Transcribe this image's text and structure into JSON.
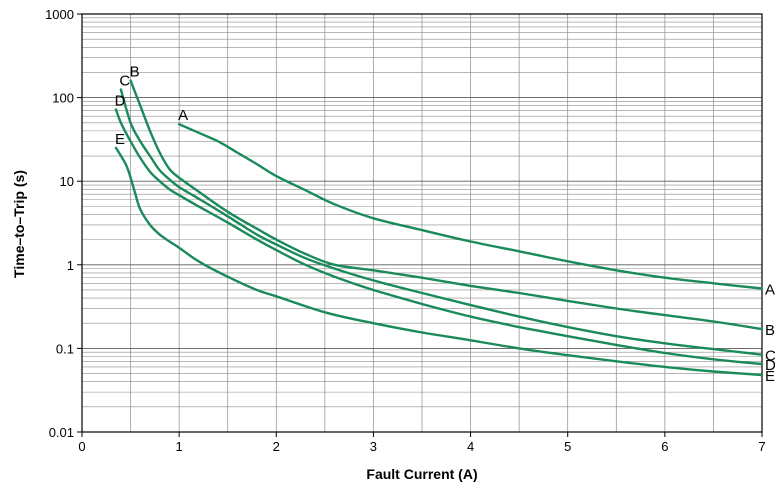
{
  "chart_data": {
    "type": "line",
    "title": "",
    "xlabel": "Fault Current (A)",
    "ylabel": "Time–to–Trip (s)",
    "xlim": [
      0,
      7
    ],
    "ylim": [
      0.01,
      1000
    ],
    "y_scale": "log",
    "grid": true,
    "x_ticks": [
      "0",
      "1",
      "2",
      "3",
      "4",
      "5",
      "6",
      "7"
    ],
    "y_ticks": [
      "0.01",
      "0.1",
      "1",
      "10",
      "100",
      "1000"
    ],
    "line_color": "#1a8a5a",
    "series": [
      {
        "name": "A",
        "x": [
          1.0,
          1.2,
          1.4,
          1.6,
          1.8,
          2.0,
          2.3,
          2.6,
          3.0,
          3.5,
          4.0,
          4.5,
          5.0,
          5.5,
          6.0,
          6.5,
          7.0
        ],
        "y": [
          48,
          38,
          30,
          22,
          16,
          11.5,
          7.8,
          5.3,
          3.6,
          2.6,
          1.9,
          1.45,
          1.1,
          0.86,
          0.7,
          0.6,
          0.52
        ]
      },
      {
        "name": "B",
        "x": [
          0.5,
          0.6,
          0.7,
          0.8,
          0.9,
          1.0,
          1.2,
          1.5,
          1.8,
          2.0,
          2.3,
          2.6,
          3.0,
          3.5,
          4.0,
          4.5,
          5.0,
          5.5,
          6.0,
          6.5,
          7.0
        ],
        "y": [
          160,
          80,
          40,
          22,
          14,
          11,
          7.5,
          4.3,
          2.7,
          2.0,
          1.35,
          1.0,
          0.86,
          0.7,
          0.56,
          0.46,
          0.37,
          0.3,
          0.25,
          0.21,
          0.17
        ]
      },
      {
        "name": "C",
        "x": [
          0.4,
          0.5,
          0.6,
          0.7,
          0.8,
          0.9,
          1.0,
          1.2,
          1.5,
          1.8,
          2.0,
          2.3,
          2.6,
          3.0,
          3.5,
          4.0,
          4.5,
          5.0,
          5.5,
          6.0,
          6.5,
          7.0
        ],
        "y": [
          125,
          50,
          30,
          20,
          13.5,
          10.5,
          8.5,
          6.2,
          3.8,
          2.3,
          1.75,
          1.2,
          0.9,
          0.65,
          0.46,
          0.33,
          0.24,
          0.18,
          0.14,
          0.115,
          0.098,
          0.084
        ]
      },
      {
        "name": "D",
        "x": [
          0.35,
          0.4,
          0.5,
          0.6,
          0.7,
          0.8,
          0.9,
          1.0,
          1.2,
          1.5,
          1.8,
          2.0,
          2.3,
          2.6,
          3.0,
          3.5,
          4.0,
          4.5,
          5.0,
          5.5,
          6.0,
          6.5,
          7.0
        ],
        "y": [
          72,
          50,
          30,
          19,
          13,
          10,
          8,
          6.8,
          5.0,
          3.2,
          2.0,
          1.5,
          1.0,
          0.72,
          0.5,
          0.34,
          0.24,
          0.18,
          0.14,
          0.11,
          0.088,
          0.074,
          0.065
        ]
      },
      {
        "name": "E",
        "x": [
          0.35,
          0.45,
          0.5,
          0.55,
          0.6,
          0.7,
          0.8,
          0.9,
          1.0,
          1.2,
          1.5,
          1.8,
          2.0,
          2.5,
          3.0,
          3.5,
          4.0,
          4.5,
          5.0,
          5.5,
          6.0,
          6.5,
          7.0
        ],
        "y": [
          25,
          16,
          11,
          7,
          4.6,
          3.0,
          2.3,
          1.9,
          1.6,
          1.1,
          0.72,
          0.5,
          0.42,
          0.27,
          0.2,
          0.155,
          0.125,
          0.1,
          0.083,
          0.07,
          0.06,
          0.053,
          0.048
        ]
      }
    ]
  }
}
